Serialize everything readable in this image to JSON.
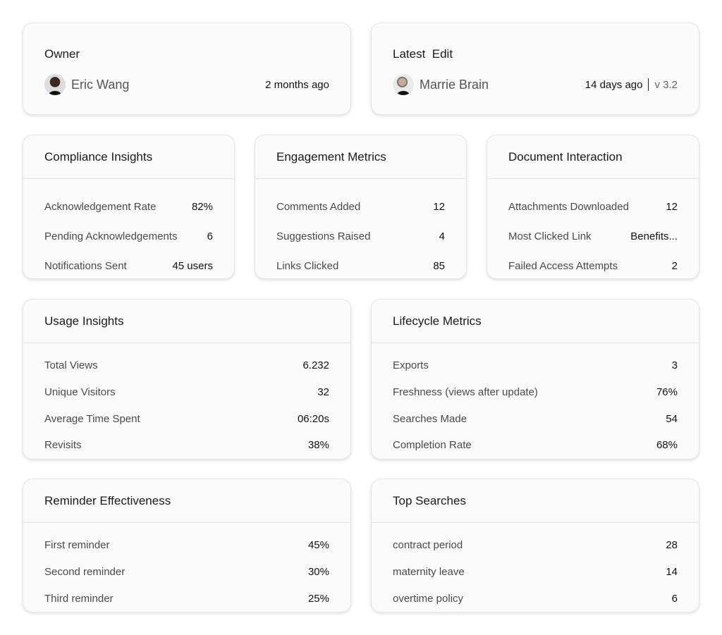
{
  "owner": {
    "title": "Owner",
    "name": "Eric Wang",
    "time": "2 months ago"
  },
  "latest": {
    "title": "Latest  Edit",
    "name": "Marrie Brain",
    "time": "14 days ago",
    "version": "v 3.2"
  },
  "compliance": {
    "title": "Compliance Insights",
    "rows": [
      {
        "label": "Acknowledgement Rate",
        "value": "82%"
      },
      {
        "label": "Pending Acknowledgements",
        "value": "6"
      },
      {
        "label": "Notifications Sent",
        "value": "45 users"
      }
    ]
  },
  "engagement": {
    "title": "Engagement Metrics",
    "rows": [
      {
        "label": "Comments Added",
        "value": "12"
      },
      {
        "label": "Suggestions Raised",
        "value": "4"
      },
      {
        "label": "Links Clicked",
        "value": "85"
      }
    ]
  },
  "interaction": {
    "title": "Document Interaction",
    "rows": [
      {
        "label": "Attachments Downloaded",
        "value": "12"
      },
      {
        "label": "Most Clicked Link",
        "value": "Benefits..."
      },
      {
        "label": "Failed Access Attempts",
        "value": "2"
      }
    ]
  },
  "usage": {
    "title": "Usage Insights",
    "rows": [
      {
        "label": "Total Views",
        "value": "6.232"
      },
      {
        "label": "Unique Visitors",
        "value": "32"
      },
      {
        "label": "Average Time Spent",
        "value": "06:20s"
      },
      {
        "label": "Revisits",
        "value": "38%"
      }
    ]
  },
  "lifecycle": {
    "title": "Lifecycle Metrics",
    "rows": [
      {
        "label": "Exports",
        "value": "3"
      },
      {
        "label": "Freshness (views after update)",
        "value": "76%"
      },
      {
        "label": "Searches Made",
        "value": "54"
      },
      {
        "label": "Completion Rate",
        "value": "68%"
      }
    ]
  },
  "reminder": {
    "title": "Reminder Effectiveness",
    "rows": [
      {
        "label": "First reminder",
        "value": "45%"
      },
      {
        "label": "Second reminder",
        "value": "30%"
      },
      {
        "label": "Third reminder",
        "value": "25%"
      }
    ]
  },
  "searches": {
    "title": "Top Searches",
    "rows": [
      {
        "label": "contract period",
        "value": "28"
      },
      {
        "label": "maternity leave",
        "value": "14"
      },
      {
        "label": "overtime policy",
        "value": "6"
      }
    ]
  }
}
